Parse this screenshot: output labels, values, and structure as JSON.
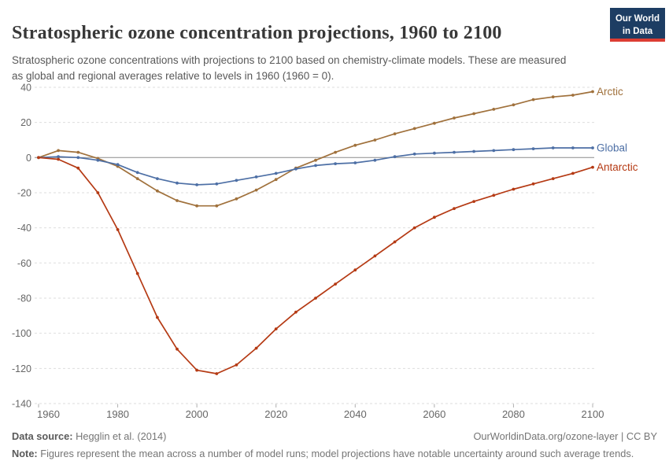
{
  "header": {
    "title": "Stratospheric ozone concentration projections, 1960 to 2100",
    "subtitle": "Stratospheric ozone concentrations with projections to 2100 based on chemistry-climate models. These are measured as global and regional averages relative to levels in 1960 (1960 = 0)."
  },
  "logo": {
    "line1": "Our World",
    "line2": "in Data",
    "bg_color": "#1d3d63",
    "bar_color": "#dc3d33"
  },
  "chart_data": {
    "type": "line",
    "title": "Stratospheric ozone concentration projections, 1960 to 2100",
    "xlabel": "",
    "ylabel": "",
    "ylim": [
      -140,
      40
    ],
    "xlim": [
      1960,
      2100
    ],
    "grid": "dashed-horizontal",
    "legend_position": "line-end-labels",
    "yticks": [
      40,
      20,
      0,
      -20,
      -40,
      -60,
      -80,
      -100,
      -120,
      -140
    ],
    "xticks": [
      1960,
      1980,
      2000,
      2020,
      2040,
      2060,
      2080,
      2100
    ],
    "x": [
      1960,
      1965,
      1970,
      1975,
      1980,
      1985,
      1990,
      1995,
      2000,
      2005,
      2010,
      2015,
      2020,
      2025,
      2030,
      2035,
      2040,
      2045,
      2050,
      2055,
      2060,
      2065,
      2070,
      2075,
      2080,
      2085,
      2090,
      2095,
      2100
    ],
    "series": [
      {
        "name": "Arctic",
        "color": "#A0713C",
        "values": [
          0,
          4,
          3,
          -0.5,
          -5,
          -12,
          -19,
          -24.5,
          -27.5,
          -27.5,
          -23.5,
          -18.5,
          -12.5,
          -6,
          -1.5,
          3,
          7,
          10,
          13.5,
          16.5,
          19.5,
          22.5,
          25,
          27.5,
          30,
          33,
          34.5,
          35.5,
          37.5
        ]
      },
      {
        "name": "Global",
        "color": "#4D6FA5",
        "values": [
          0,
          0.5,
          0,
          -1.5,
          -4,
          -8.5,
          -12,
          -14.5,
          -15.5,
          -15,
          -13,
          -11,
          -9,
          -6.5,
          -4.5,
          -3.5,
          -3,
          -1.5,
          0.5,
          2,
          2.5,
          3,
          3.5,
          4,
          4.5,
          5,
          5.5,
          5.5,
          5.5
        ]
      },
      {
        "name": "Antarctic",
        "color": "#B53A14",
        "values": [
          0,
          -1,
          -6,
          -20,
          -41,
          -66,
          -91,
          -109,
          -121,
          -123,
          -118,
          -108.5,
          -97.5,
          -88,
          -80,
          -72,
          -64,
          -56,
          -48,
          -40,
          -34,
          -29,
          -25,
          -21.5,
          -18,
          -15,
          -12,
          -9,
          -5.5
        ]
      }
    ],
    "axis_color": "#666666",
    "gridline_color": "#dedede",
    "zero_line_color": "#8c8c8c",
    "tick_color": "#b0b0b0"
  },
  "footer": {
    "source_label": "Data source:",
    "source_value": " Hegglin et al. (2014)",
    "url": "OurWorldinData.org/ozone-layer",
    "separator": " | ",
    "license": "CC BY",
    "note_label": "Note:",
    "note_text": " Figures represent the mean across a number of model runs; model projections have notable uncertainty around such average trends."
  }
}
